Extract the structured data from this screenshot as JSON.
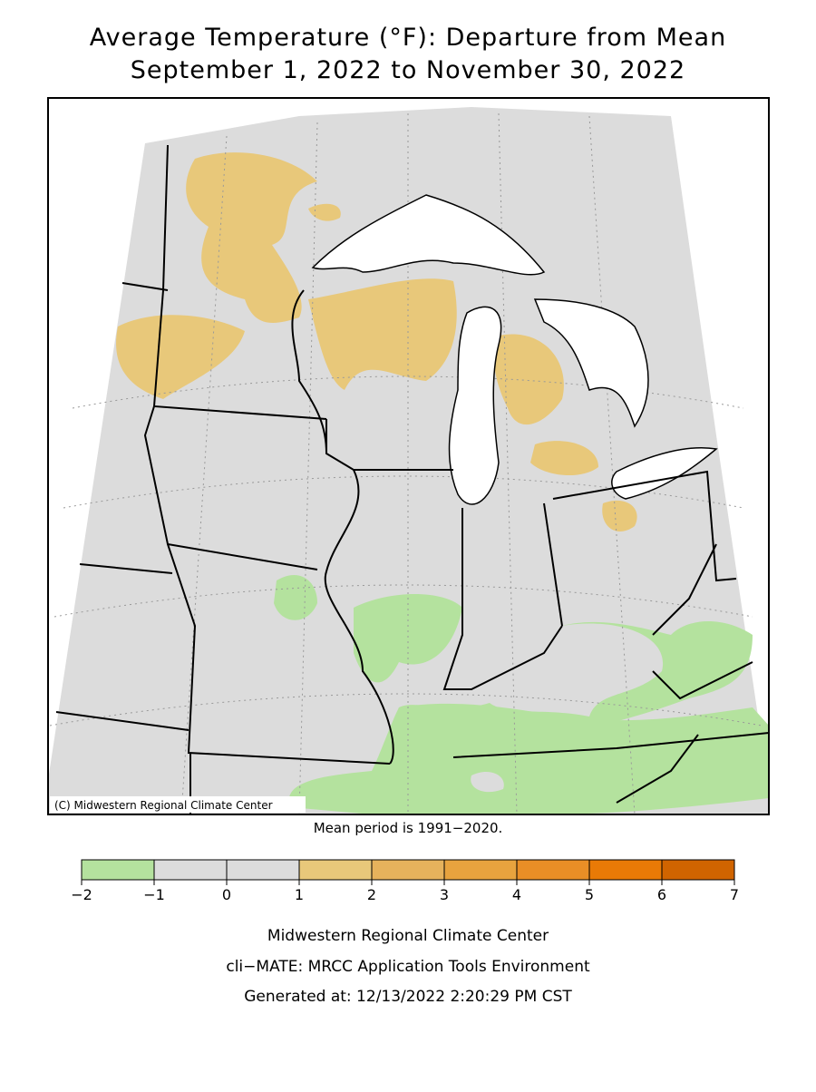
{
  "title": [
    "Average Temperature (°F): Departure from Mean",
    "September 1, 2022 to November 30, 2022"
  ],
  "map": {
    "credit": "(C) Midwestern Regional Climate Center",
    "note": "Mean period is 1991−2020."
  },
  "legend": {
    "ticks": [
      {
        "value": -2,
        "label": "−2"
      },
      {
        "value": -1,
        "label": "−1"
      },
      0,
      1,
      2,
      3,
      4,
      5,
      6,
      7
    ],
    "colors": [
      "#b4e29e",
      "#dcdcdc",
      "#dcdcdc",
      "#e8c87a",
      "#e6b25c",
      "#e8a33e",
      "#e98e26",
      "#e97a06",
      "#d06400"
    ]
  },
  "footer": [
    "Midwestern Regional Climate Center",
    "cli−MATE: MRCC Application Tools Environment",
    "Generated at: 12/13/2022 2:20:29 PM CST"
  ]
}
